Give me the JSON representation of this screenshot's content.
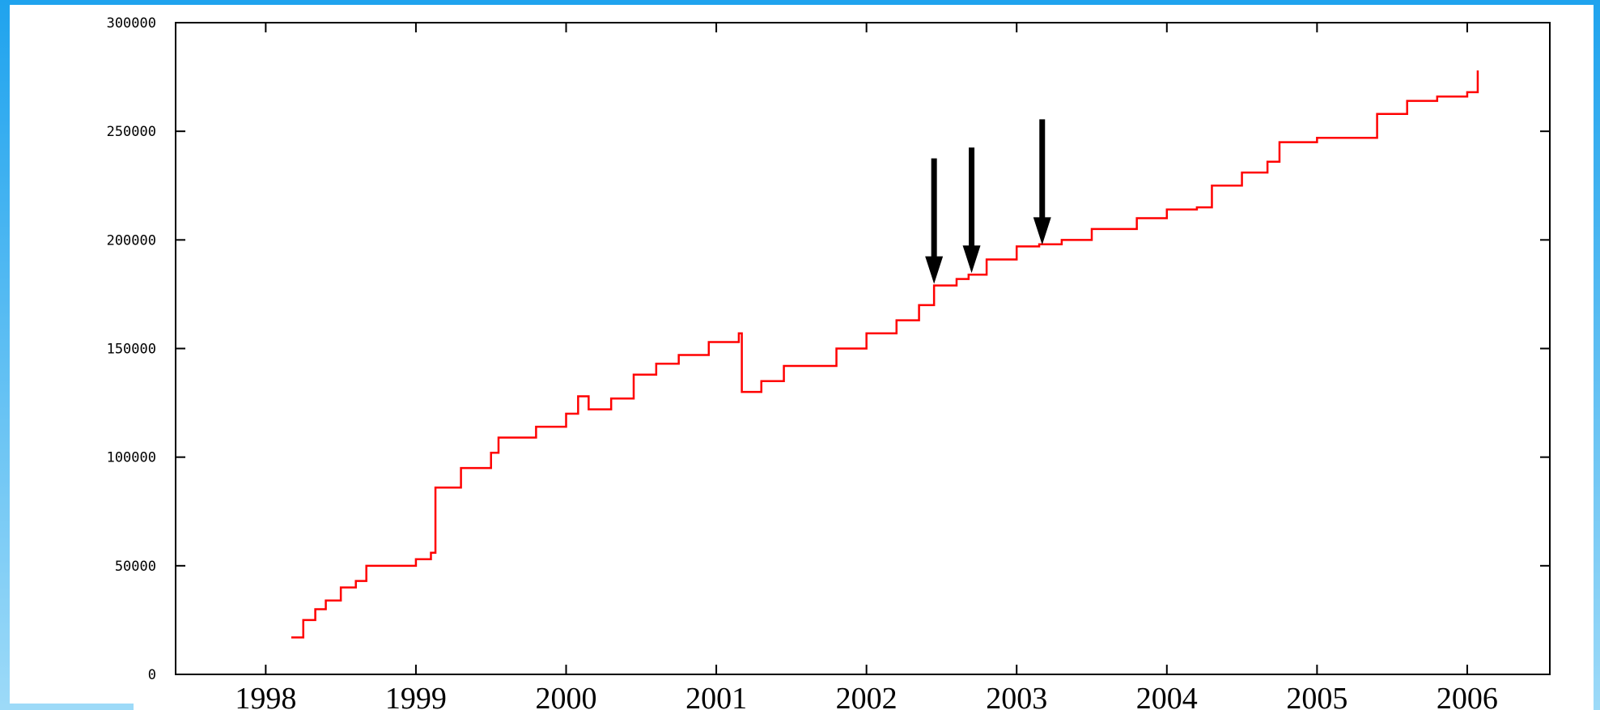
{
  "colors": {
    "frame": "#1fa3ee",
    "series": "#ff0000",
    "arrow": "#000000",
    "axis": "#000000"
  },
  "chart_data": {
    "type": "line",
    "title": "",
    "xlabel": "",
    "ylabel": "",
    "xlim": [
      1997.4,
      2006.55
    ],
    "ylim": [
      0,
      300000
    ],
    "grid": false,
    "legend": "none",
    "x_ticks": [
      "1998",
      "1999",
      "2000",
      "2001",
      "2002",
      "2003",
      "2004",
      "2005",
      "2006"
    ],
    "y_ticks": [
      "0",
      "50000",
      "100000",
      "150000",
      "200000",
      "250000",
      "300000"
    ],
    "series": [
      {
        "style": "step",
        "x": [
          1998.17,
          1998.25,
          1998.33,
          1998.4,
          1998.5,
          1998.6,
          1998.67,
          1999.0,
          1999.1,
          1999.13,
          1999.3,
          1999.5,
          1999.55,
          1999.8,
          2000.0,
          2000.08,
          2000.15,
          2000.3,
          2000.45,
          2000.6,
          2000.75,
          2000.95,
          2001.15,
          2001.17,
          2001.3,
          2001.45,
          2001.8,
          2002.0,
          2002.2,
          2002.35,
          2002.45,
          2002.6,
          2002.68,
          2002.8,
          2003.0,
          2003.15,
          2003.3,
          2003.5,
          2003.8,
          2004.0,
          2004.2,
          2004.3,
          2004.5,
          2004.67,
          2004.75,
          2005.0,
          2005.2,
          2005.4,
          2005.6,
          2005.8,
          2006.0,
          2006.03,
          2006.07
        ],
        "y": [
          17000,
          25000,
          30000,
          34000,
          40000,
          43000,
          50000,
          53000,
          56000,
          86000,
          95000,
          102000,
          109000,
          114000,
          120000,
          128000,
          122000,
          127000,
          138000,
          143000,
          147000,
          153000,
          157000,
          130000,
          135000,
          142000,
          150000,
          157000,
          163000,
          170000,
          179000,
          182000,
          184000,
          191000,
          197000,
          198000,
          200000,
          205000,
          210000,
          214000,
          215000,
          225000,
          231000,
          236000,
          245000,
          247000,
          247000,
          258000,
          264000,
          266000,
          268000,
          268000,
          278000
        ]
      }
    ],
    "annotations": [
      {
        "type": "arrow",
        "x": 2002.45,
        "y": 179000
      },
      {
        "type": "arrow",
        "x": 2002.7,
        "y": 184000
      },
      {
        "type": "arrow",
        "x": 2003.17,
        "y": 197000
      }
    ]
  }
}
